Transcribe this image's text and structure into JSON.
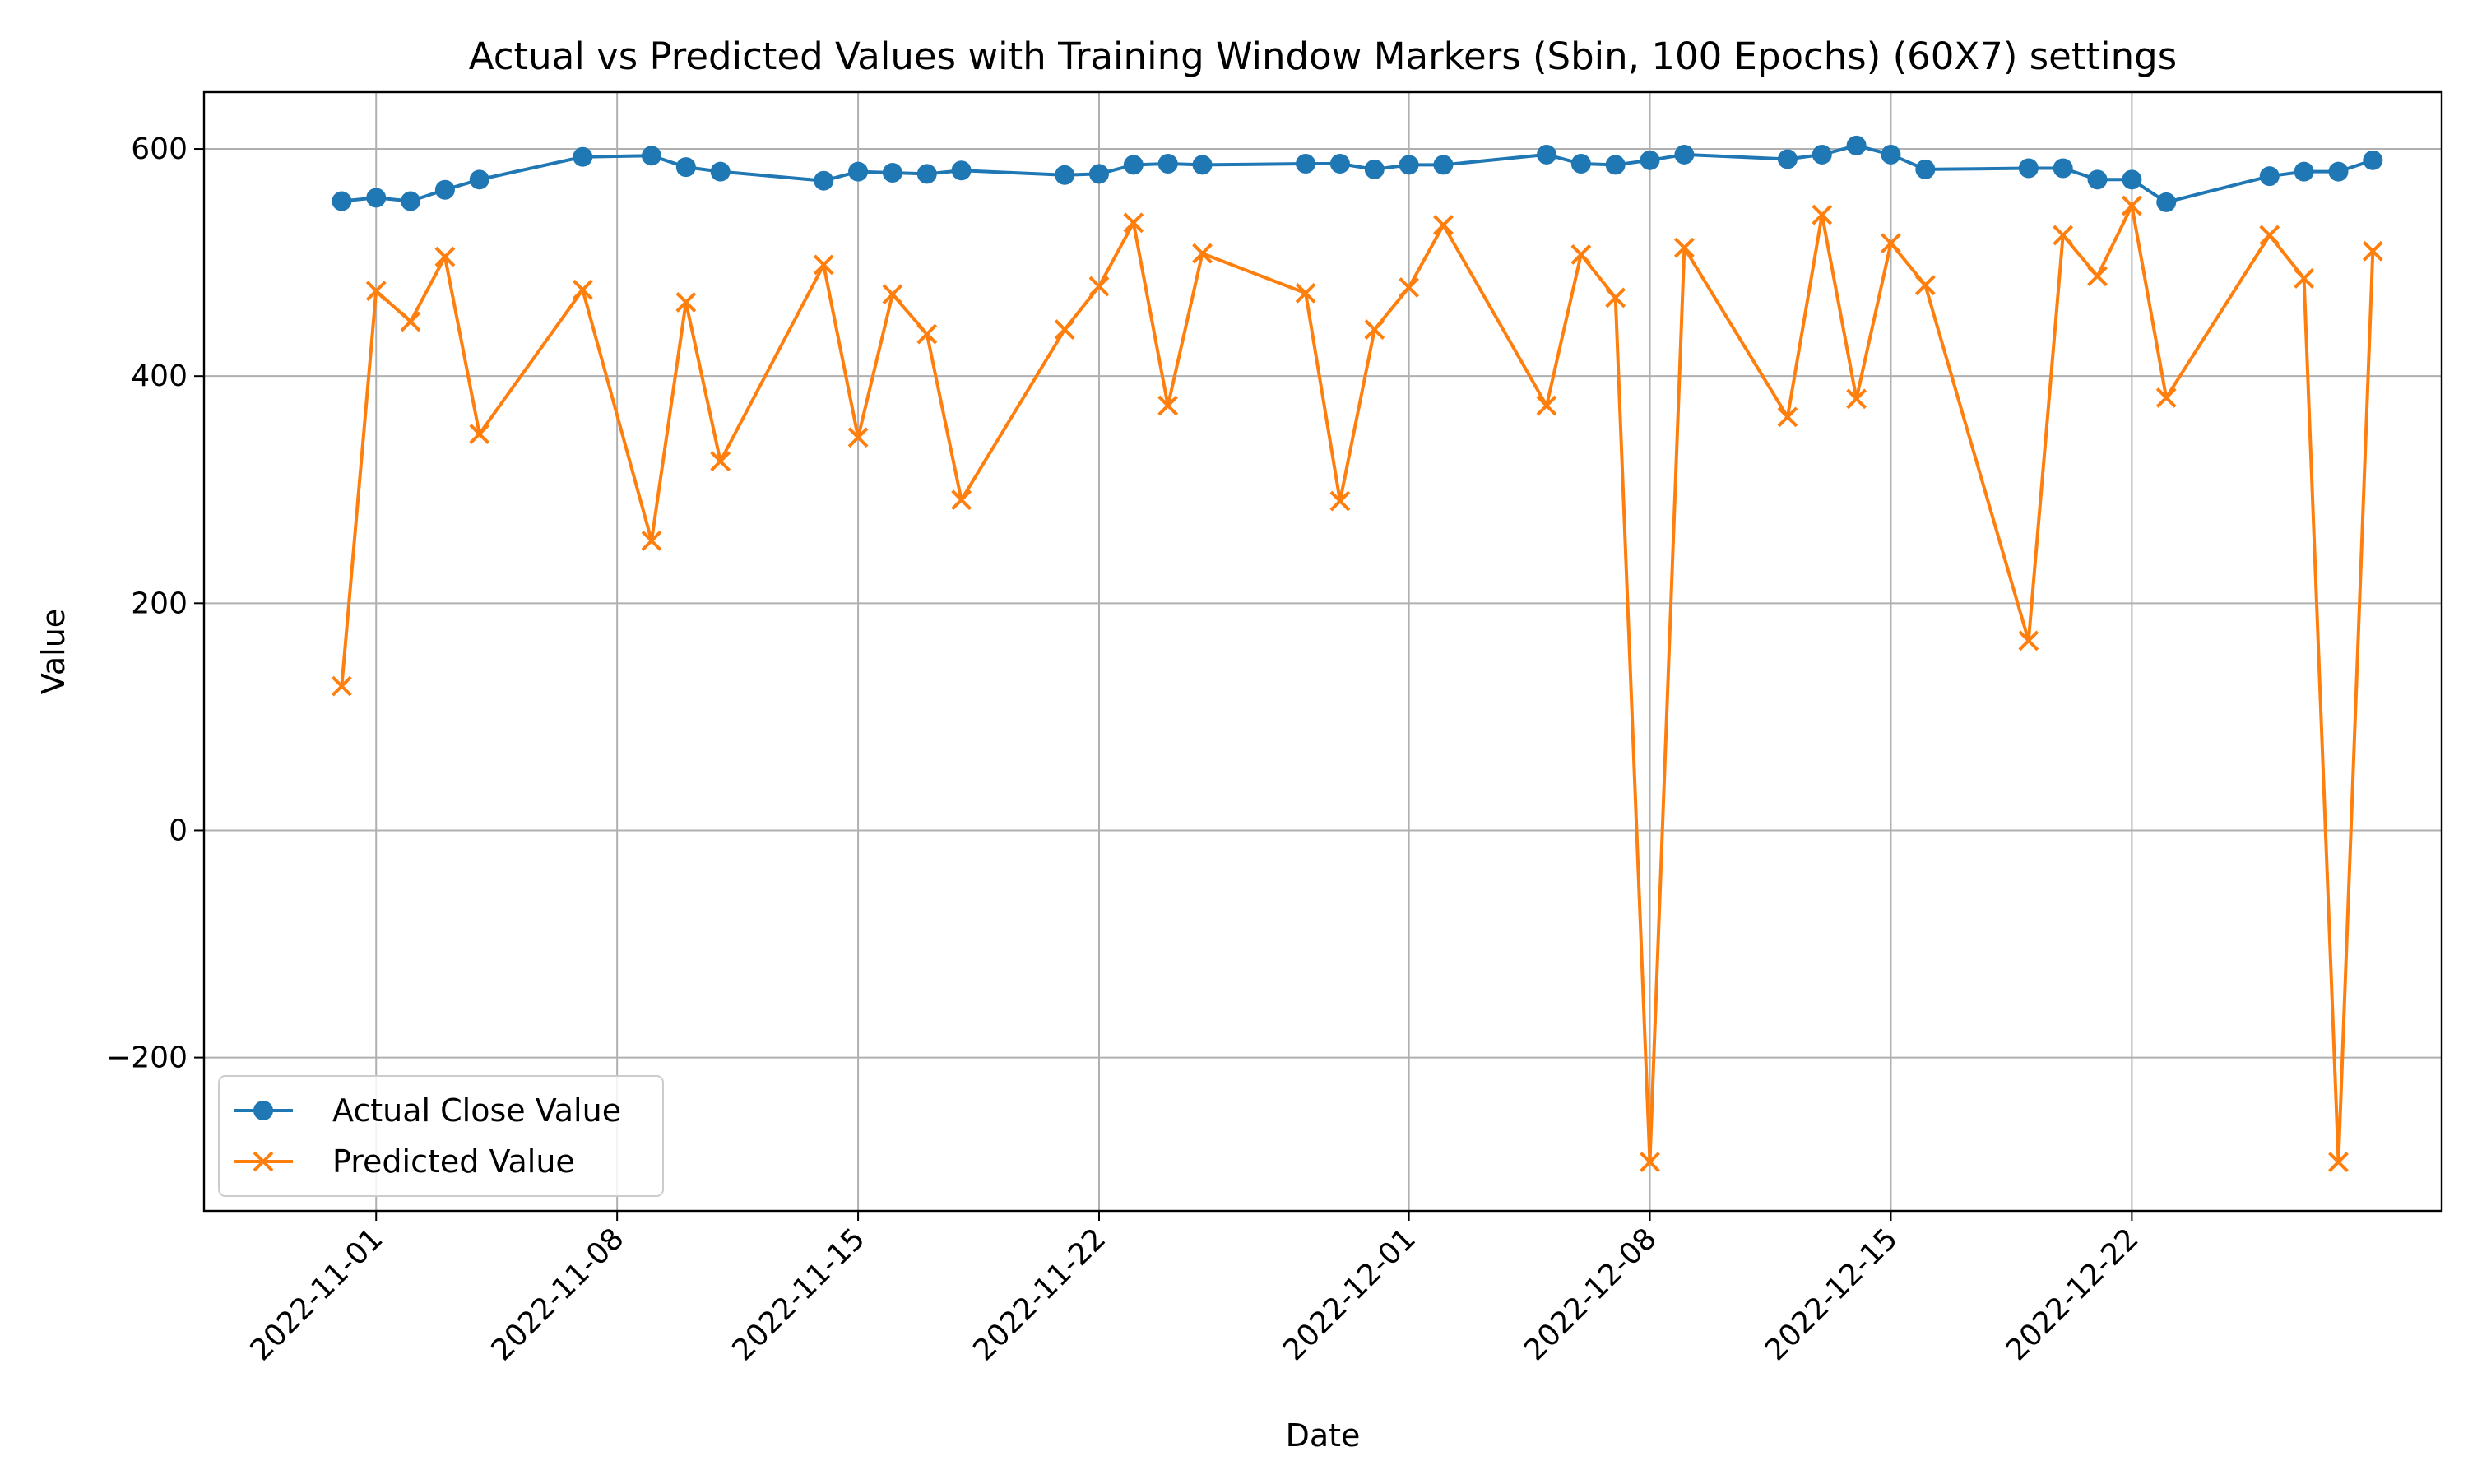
{
  "chart_data": {
    "type": "line",
    "title": "Actual vs Predicted Values with Training Window Markers (Sbin, 100 Epochs) (60X7) settings",
    "xlabel": "Date",
    "ylabel": "Value",
    "x_is_date": true,
    "xlim": [
      "2022-10-27",
      "2022-12-31"
    ],
    "ylim": [
      -335,
      650
    ],
    "grid": true,
    "legend_position": "lower-left",
    "x_ticks": [
      "2022-11-01",
      "2022-11-08",
      "2022-11-15",
      "2022-11-22",
      "2022-12-01",
      "2022-12-08",
      "2022-12-15",
      "2022-12-22"
    ],
    "y_ticks": [
      -200,
      0,
      200,
      400,
      600
    ],
    "dates": [
      "2022-10-31",
      "2022-11-01",
      "2022-11-02",
      "2022-11-03",
      "2022-11-04",
      "2022-11-07",
      "2022-11-09",
      "2022-11-10",
      "2022-11-11",
      "2022-11-14",
      "2022-11-15",
      "2022-11-16",
      "2022-11-17",
      "2022-11-18",
      "2022-11-21",
      "2022-11-22",
      "2022-11-23",
      "2022-11-24",
      "2022-11-25",
      "2022-11-28",
      "2022-11-29",
      "2022-11-30",
      "2022-12-01",
      "2022-12-02",
      "2022-12-05",
      "2022-12-06",
      "2022-12-07",
      "2022-12-08",
      "2022-12-09",
      "2022-12-12",
      "2022-12-13",
      "2022-12-14",
      "2022-12-15",
      "2022-12-16",
      "2022-12-19",
      "2022-12-20",
      "2022-12-21",
      "2022-12-22",
      "2022-12-23",
      "2022-12-26",
      "2022-12-27",
      "2022-12-28",
      "2022-12-29"
    ],
    "series": [
      {
        "name": "Actual Close Value",
        "color": "#1f77b4",
        "marker": "circle",
        "values": [
          554,
          557,
          554,
          564,
          573,
          593,
          594,
          584,
          580,
          572,
          580,
          579,
          578,
          581,
          577,
          578,
          586,
          587,
          586,
          587,
          587,
          582,
          586,
          586,
          595,
          587,
          586,
          590,
          595,
          591,
          595,
          603,
          595,
          582,
          583,
          583,
          573,
          573,
          553,
          576,
          580,
          580,
          590
        ]
      },
      {
        "name": "Predicted Value",
        "color": "#ff7f0e",
        "marker": "x",
        "values": [
          127,
          475,
          448,
          505,
          349,
          476,
          255,
          465,
          325,
          498,
          346,
          472,
          437,
          291,
          441,
          479,
          535,
          374,
          508,
          473,
          290,
          441,
          478,
          533,
          374,
          507,
          469,
          -292,
          513,
          364,
          542,
          380,
          517,
          480,
          167,
          524,
          488,
          550,
          381,
          524,
          486,
          -292,
          510
        ]
      }
    ]
  }
}
